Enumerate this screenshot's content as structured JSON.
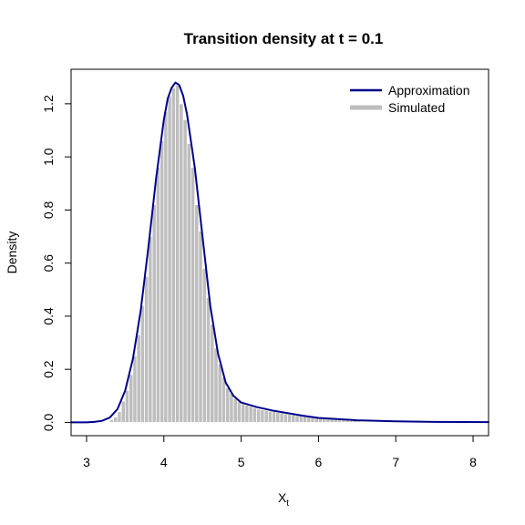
{
  "chart_data": {
    "type": "histogram+line",
    "title": "Transition density at t = 0.1",
    "xlabel_main": "X",
    "xlabel_sub": "t",
    "ylabel": "Density",
    "xlim": [
      2.8,
      8.2
    ],
    "ylim": [
      -0.05,
      1.33
    ],
    "x_ticks": [
      3,
      4,
      5,
      6,
      7,
      8
    ],
    "y_ticks": [
      0.0,
      0.2,
      0.4,
      0.6,
      0.8,
      1.0,
      1.2
    ],
    "x_tick_labels": [
      "3",
      "4",
      "5",
      "6",
      "7",
      "8"
    ],
    "y_tick_labels": [
      "0.0",
      "0.2",
      "0.4",
      "0.6",
      "0.8",
      "1.0",
      "1.2"
    ],
    "legend": {
      "position": "top-right",
      "entries": [
        {
          "label": "Approximation",
          "color": "#00008B"
        },
        {
          "label": "Simulated",
          "color": "#BEBEBE"
        }
      ]
    },
    "histogram": {
      "name": "Simulated",
      "color": "#BEBEBE",
      "bin_width": 0.05,
      "bins": [
        {
          "x0": 3.3,
          "y": 0.01
        },
        {
          "x0": 3.35,
          "y": 0.02
        },
        {
          "x0": 3.4,
          "y": 0.04
        },
        {
          "x0": 3.45,
          "y": 0.08
        },
        {
          "x0": 3.5,
          "y": 0.12
        },
        {
          "x0": 3.55,
          "y": 0.18
        },
        {
          "x0": 3.6,
          "y": 0.25
        },
        {
          "x0": 3.65,
          "y": 0.33
        },
        {
          "x0": 3.7,
          "y": 0.44
        },
        {
          "x0": 3.75,
          "y": 0.55
        },
        {
          "x0": 3.8,
          "y": 0.7
        },
        {
          "x0": 3.85,
          "y": 0.82
        },
        {
          "x0": 3.9,
          "y": 0.96
        },
        {
          "x0": 3.95,
          "y": 1.06
        },
        {
          "x0": 4.0,
          "y": 1.17
        },
        {
          "x0": 4.05,
          "y": 1.23
        },
        {
          "x0": 4.1,
          "y": 1.26
        },
        {
          "x0": 4.15,
          "y": 1.27
        },
        {
          "x0": 4.2,
          "y": 1.2
        },
        {
          "x0": 4.25,
          "y": 1.14
        },
        {
          "x0": 4.3,
          "y": 1.05
        },
        {
          "x0": 4.35,
          "y": 0.96
        },
        {
          "x0": 4.4,
          "y": 0.82
        },
        {
          "x0": 4.45,
          "y": 0.72
        },
        {
          "x0": 4.5,
          "y": 0.58
        },
        {
          "x0": 4.55,
          "y": 0.47
        },
        {
          "x0": 4.6,
          "y": 0.37
        },
        {
          "x0": 4.65,
          "y": 0.28
        },
        {
          "x0": 4.7,
          "y": 0.22
        },
        {
          "x0": 4.75,
          "y": 0.17
        },
        {
          "x0": 4.8,
          "y": 0.13
        },
        {
          "x0": 4.85,
          "y": 0.11
        },
        {
          "x0": 4.9,
          "y": 0.09
        },
        {
          "x0": 4.95,
          "y": 0.08
        },
        {
          "x0": 5.0,
          "y": 0.07
        },
        {
          "x0": 5.05,
          "y": 0.065
        },
        {
          "x0": 5.1,
          "y": 0.06
        },
        {
          "x0": 5.15,
          "y": 0.055
        },
        {
          "x0": 5.2,
          "y": 0.05
        },
        {
          "x0": 5.25,
          "y": 0.047
        },
        {
          "x0": 5.3,
          "y": 0.045
        },
        {
          "x0": 5.35,
          "y": 0.042
        },
        {
          "x0": 5.4,
          "y": 0.04
        },
        {
          "x0": 5.45,
          "y": 0.037
        },
        {
          "x0": 5.5,
          "y": 0.035
        },
        {
          "x0": 5.55,
          "y": 0.032
        },
        {
          "x0": 5.6,
          "y": 0.03
        },
        {
          "x0": 5.65,
          "y": 0.028
        },
        {
          "x0": 5.7,
          "y": 0.026
        },
        {
          "x0": 5.75,
          "y": 0.024
        },
        {
          "x0": 5.8,
          "y": 0.022
        },
        {
          "x0": 5.85,
          "y": 0.02
        },
        {
          "x0": 5.9,
          "y": 0.018
        },
        {
          "x0": 5.95,
          "y": 0.017
        },
        {
          "x0": 6.0,
          "y": 0.015
        },
        {
          "x0": 6.05,
          "y": 0.014
        },
        {
          "x0": 6.1,
          "y": 0.013
        },
        {
          "x0": 6.15,
          "y": 0.012
        },
        {
          "x0": 6.2,
          "y": 0.011
        },
        {
          "x0": 6.25,
          "y": 0.01
        },
        {
          "x0": 6.3,
          "y": 0.009
        },
        {
          "x0": 6.35,
          "y": 0.008
        },
        {
          "x0": 6.4,
          "y": 0.007
        },
        {
          "x0": 6.45,
          "y": 0.006
        },
        {
          "x0": 6.5,
          "y": 0.005
        }
      ]
    },
    "line": {
      "name": "Approximation",
      "color": "#00008B",
      "x": [
        2.8,
        3.0,
        3.1,
        3.2,
        3.3,
        3.4,
        3.5,
        3.6,
        3.7,
        3.8,
        3.9,
        4.0,
        4.05,
        4.1,
        4.15,
        4.2,
        4.25,
        4.3,
        4.4,
        4.5,
        4.6,
        4.7,
        4.8,
        4.9,
        5.0,
        5.2,
        5.4,
        5.6,
        5.8,
        6.0,
        6.5,
        7.0,
        7.5,
        8.2
      ],
      "y": [
        0.0,
        0.0,
        0.002,
        0.006,
        0.018,
        0.05,
        0.12,
        0.24,
        0.42,
        0.66,
        0.92,
        1.14,
        1.22,
        1.26,
        1.28,
        1.27,
        1.23,
        1.16,
        0.96,
        0.7,
        0.44,
        0.26,
        0.15,
        0.1,
        0.075,
        0.058,
        0.045,
        0.035,
        0.025,
        0.017,
        0.008,
        0.004,
        0.002,
        0.001
      ]
    }
  }
}
